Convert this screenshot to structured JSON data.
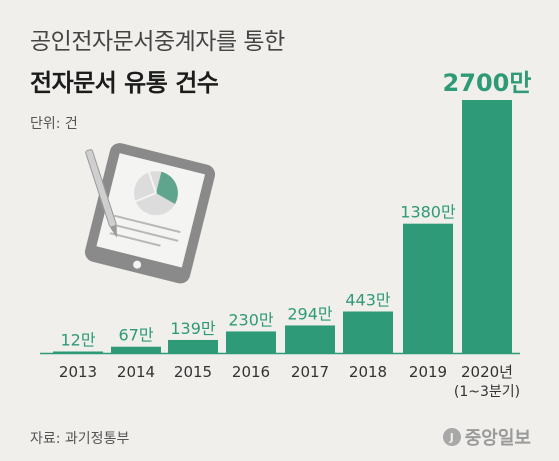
{
  "title_line1": "공인전자문서중계자를 통한",
  "title_line2": "전자문서 유통 건수",
  "unit": "단위: 건",
  "source": "자료: 과기정통부",
  "logo_text": "중앙일보",
  "colors": {
    "bar": "#2f9a78",
    "value_label": "#2f9a78",
    "background": "#f0efeb",
    "illustration": "#8f8f8f"
  },
  "chart_data": {
    "type": "bar",
    "categories": [
      "2013",
      "2014",
      "2015",
      "2016",
      "2017",
      "2018",
      "2019",
      "2020년"
    ],
    "category_sublabels": [
      "",
      "",
      "",
      "",
      "",
      "",
      "",
      "(1~3분기)"
    ],
    "values": [
      12,
      67,
      139,
      230,
      294,
      443,
      1380,
      2700
    ],
    "value_labels": [
      "12만",
      "67만",
      "139만",
      "230만",
      "294만",
      "443만",
      "1380만",
      "2700만"
    ],
    "highlight_index": 7,
    "title": "",
    "xlabel": "",
    "ylabel": "",
    "ylim": [
      0,
      2700
    ],
    "grid": false,
    "legend": "none"
  }
}
